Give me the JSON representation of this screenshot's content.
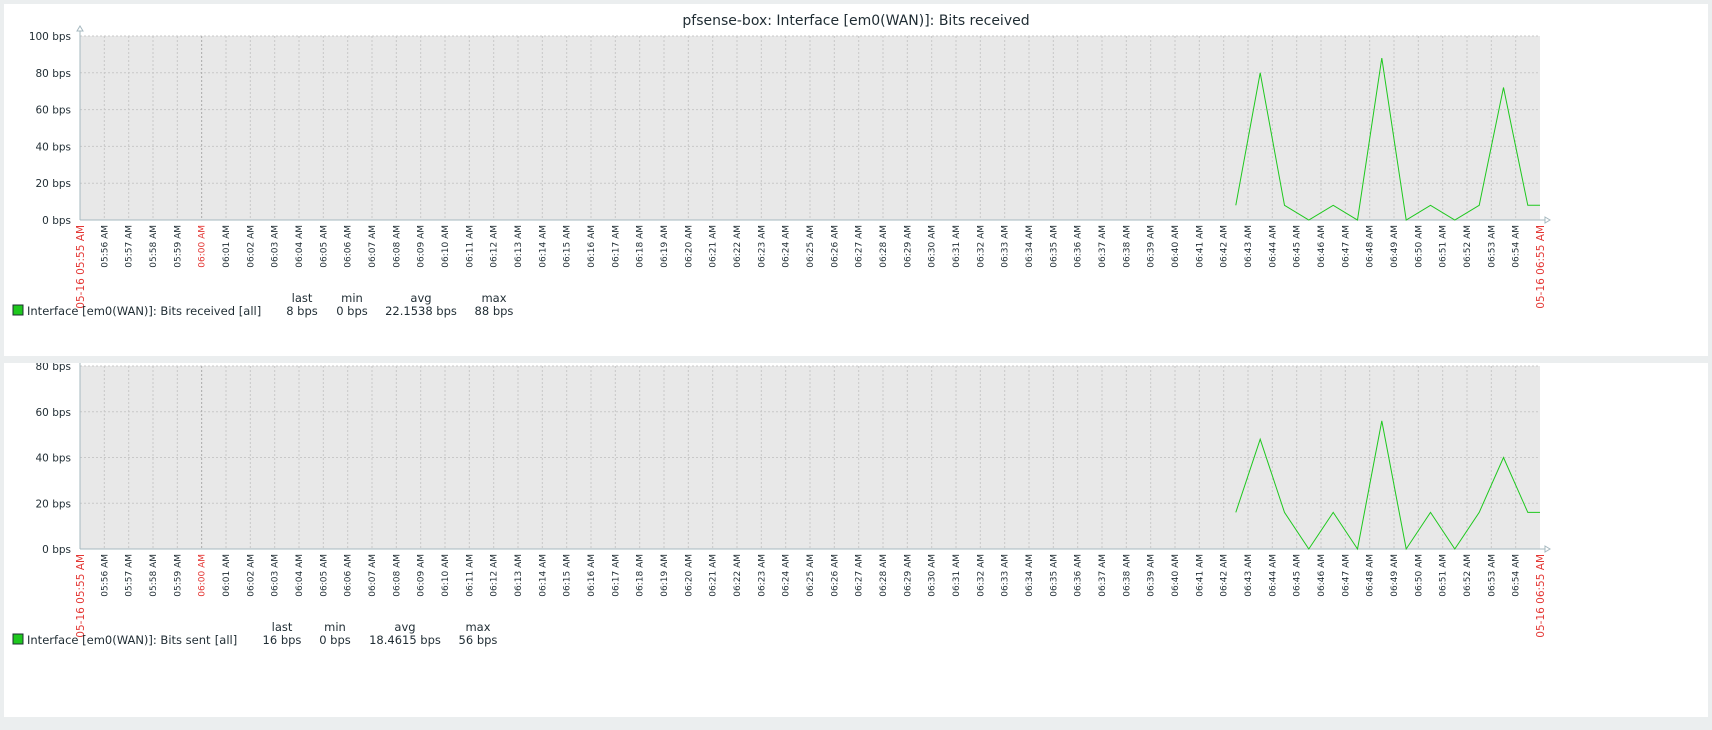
{
  "chart_data": [
    {
      "type": "line",
      "title": "pfsense-box: Interface [em0(WAN)]: Bits received",
      "x_start_label": "05-16 05:55 AM",
      "x_end_label": "05-16 06:55 AM",
      "ylim": [
        0,
        100
      ],
      "y_ticks": [
        "100 bps",
        "80 bps",
        "60 bps",
        "40 bps",
        "20 bps",
        "0 bps"
      ],
      "grid": true,
      "x_tick_labels": [
        "05:56 AM",
        "05:57 AM",
        "05:58 AM",
        "05:59 AM",
        "06:00 AM",
        "06:01 AM",
        "06:02 AM",
        "06:03 AM",
        "06:04 AM",
        "06:05 AM",
        "06:06 AM",
        "06:07 AM",
        "06:08 AM",
        "06:09 AM",
        "06:10 AM",
        "06:11 AM",
        "06:12 AM",
        "06:13 AM",
        "06:14 AM",
        "06:15 AM",
        "06:16 AM",
        "06:17 AM",
        "06:18 AM",
        "06:19 AM",
        "06:20 AM",
        "06:21 AM",
        "06:22 AM",
        "06:23 AM",
        "06:24 AM",
        "06:25 AM",
        "06:26 AM",
        "06:27 AM",
        "06:28 AM",
        "06:29 AM",
        "06:30 AM",
        "06:31 AM",
        "06:32 AM",
        "06:33 AM",
        "06:34 AM",
        "06:35 AM",
        "06:36 AM",
        "06:37 AM",
        "06:38 AM",
        "06:39 AM",
        "06:40 AM",
        "06:41 AM",
        "06:42 AM",
        "06:43 AM",
        "06:44 AM",
        "06:45 AM",
        "06:46 AM",
        "06:47 AM",
        "06:48 AM",
        "06:49 AM",
        "06:50 AM",
        "06:51 AM",
        "06:52 AM",
        "06:53 AM",
        "06:54 AM"
      ],
      "major_tick": "06:00 AM",
      "series": [
        {
          "name": "Interface [em0(WAN)]: Bits received",
          "color": "#1ec81e",
          "x_minutes": [
            47.5,
            48.5,
            49.5,
            50.5,
            51.5,
            52.5,
            53.5,
            54.5,
            55.5,
            56.5,
            57.5,
            58.5,
            59.5,
            60
          ],
          "values": [
            8,
            80,
            8,
            0,
            8,
            0,
            88,
            0,
            8,
            0,
            8,
            72,
            8,
            8
          ]
        }
      ],
      "legend": {
        "func": "[all]",
        "headers": [
          "last",
          "min",
          "avg",
          "max"
        ],
        "stats": [
          "8 bps",
          "0 bps",
          "22.1538 bps",
          "88 bps"
        ]
      }
    },
    {
      "type": "line",
      "title": "pfsense-box: Interface [em0(WAN)]: Bits sent",
      "x_start_label": "05-16 05:55 AM",
      "x_end_label": "05-16 06:55 AM",
      "ylim": [
        0,
        80
      ],
      "y_ticks": [
        "80 bps",
        "60 bps",
        "40 bps",
        "20 bps",
        "0 bps"
      ],
      "grid": true,
      "x_tick_labels": [
        "05:56 AM",
        "05:57 AM",
        "05:58 AM",
        "05:59 AM",
        "06:00 AM",
        "06:01 AM",
        "06:02 AM",
        "06:03 AM",
        "06:04 AM",
        "06:05 AM",
        "06:06 AM",
        "06:07 AM",
        "06:08 AM",
        "06:09 AM",
        "06:10 AM",
        "06:11 AM",
        "06:12 AM",
        "06:13 AM",
        "06:14 AM",
        "06:15 AM",
        "06:16 AM",
        "06:17 AM",
        "06:18 AM",
        "06:19 AM",
        "06:20 AM",
        "06:21 AM",
        "06:22 AM",
        "06:23 AM",
        "06:24 AM",
        "06:25 AM",
        "06:26 AM",
        "06:27 AM",
        "06:28 AM",
        "06:29 AM",
        "06:30 AM",
        "06:31 AM",
        "06:32 AM",
        "06:33 AM",
        "06:34 AM",
        "06:35 AM",
        "06:36 AM",
        "06:37 AM",
        "06:38 AM",
        "06:39 AM",
        "06:40 AM",
        "06:41 AM",
        "06:42 AM",
        "06:43 AM",
        "06:44 AM",
        "06:45 AM",
        "06:46 AM",
        "06:47 AM",
        "06:48 AM",
        "06:49 AM",
        "06:50 AM",
        "06:51 AM",
        "06:52 AM",
        "06:53 AM",
        "06:54 AM"
      ],
      "major_tick": "06:00 AM",
      "series": [
        {
          "name": "Interface [em0(WAN)]: Bits sent",
          "color": "#1ec81e",
          "x_minutes": [
            47.5,
            48.5,
            49.5,
            50.5,
            51.5,
            52.5,
            53.5,
            54.5,
            55.5,
            56.5,
            57.5,
            58.5,
            59.5,
            60
          ],
          "values": [
            16,
            48,
            16,
            0,
            16,
            0,
            56,
            0,
            16,
            0,
            16,
            40,
            16,
            16
          ]
        }
      ],
      "legend": {
        "func": "[all]",
        "headers": [
          "last",
          "min",
          "avg",
          "max"
        ],
        "stats": [
          "16 bps",
          "0 bps",
          "18.4615 bps",
          "56 bps"
        ]
      }
    }
  ]
}
